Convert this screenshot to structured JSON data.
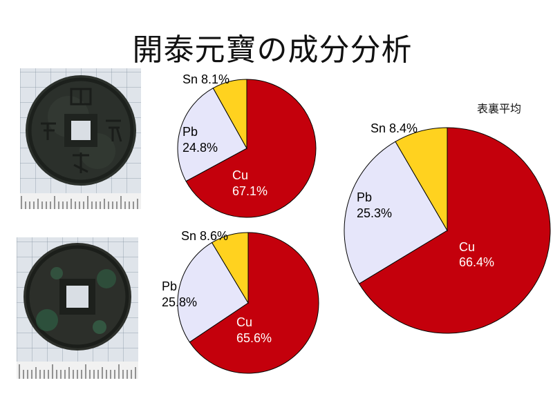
{
  "title": "開泰元寶の成分分析",
  "colors": {
    "Cu": "#c4000c",
    "Pb": "#e6e6fa",
    "Sn": "#ffd21f"
  },
  "chart_data": [
    {
      "type": "pie",
      "slices": [
        {
          "label": "Cu",
          "value": 67.1,
          "text": "67.1%"
        },
        {
          "label": "Pb",
          "value": 24.8,
          "text": "24.8%"
        },
        {
          "label": "Sn",
          "value": 8.1,
          "text": "8.1%"
        }
      ]
    },
    {
      "type": "pie",
      "slices": [
        {
          "label": "Cu",
          "value": 65.6,
          "text": "65.6%"
        },
        {
          "label": "Pb",
          "value": 25.8,
          "text": "25.8%"
        },
        {
          "label": "Sn",
          "value": 8.6,
          "text": "8.6%"
        }
      ]
    },
    {
      "type": "pie",
      "title": "表裏平均",
      "slices": [
        {
          "label": "Cu",
          "value": 66.4,
          "text": "66.4%"
        },
        {
          "label": "Pb",
          "value": 25.3,
          "text": "25.3%"
        },
        {
          "label": "Sn",
          "value": 8.4,
          "text": "8.4%"
        }
      ]
    }
  ]
}
